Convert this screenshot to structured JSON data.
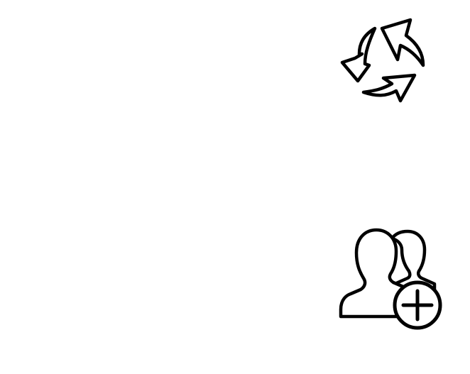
{
  "icons": [
    {
      "name": "refresh-icon",
      "stroke_color": "#000000"
    },
    {
      "name": "add-users-icon",
      "stroke_color": "#000000"
    }
  ]
}
